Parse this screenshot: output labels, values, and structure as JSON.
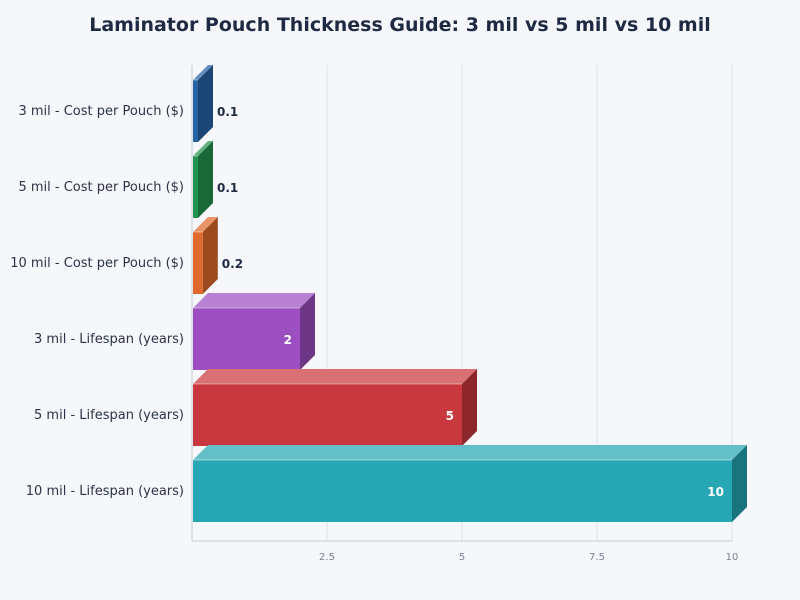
{
  "chart_data": {
    "type": "bar",
    "orientation": "horizontal",
    "style": "3d",
    "title": "Laminator Pouch Thickness Guide: 3 mil vs 5 mil vs 10 mil",
    "xlabel": "",
    "ylabel": "",
    "xlim": [
      0,
      10
    ],
    "x_ticks": [
      "2.5",
      "5",
      "7.5",
      "10"
    ],
    "grid": "vertical",
    "categories": [
      "3 mil - Cost per Pouch ($)",
      "5 mil - Cost per Pouch ($)",
      "10 mil - Cost per Pouch ($)",
      "3 mil - Lifespan (years)",
      "5 mil - Lifespan (years)",
      "10 mil - Lifespan (years)"
    ],
    "values": [
      0.1,
      0.1,
      0.2,
      2,
      5,
      10
    ],
    "value_labels": [
      "0.1",
      "0.1",
      "0.2",
      "2",
      "5",
      "10"
    ],
    "colors": [
      "#2563a6",
      "#23944f",
      "#e06a2c",
      "#9b4fc0",
      "#c9383e",
      "#27a6b3"
    ]
  }
}
